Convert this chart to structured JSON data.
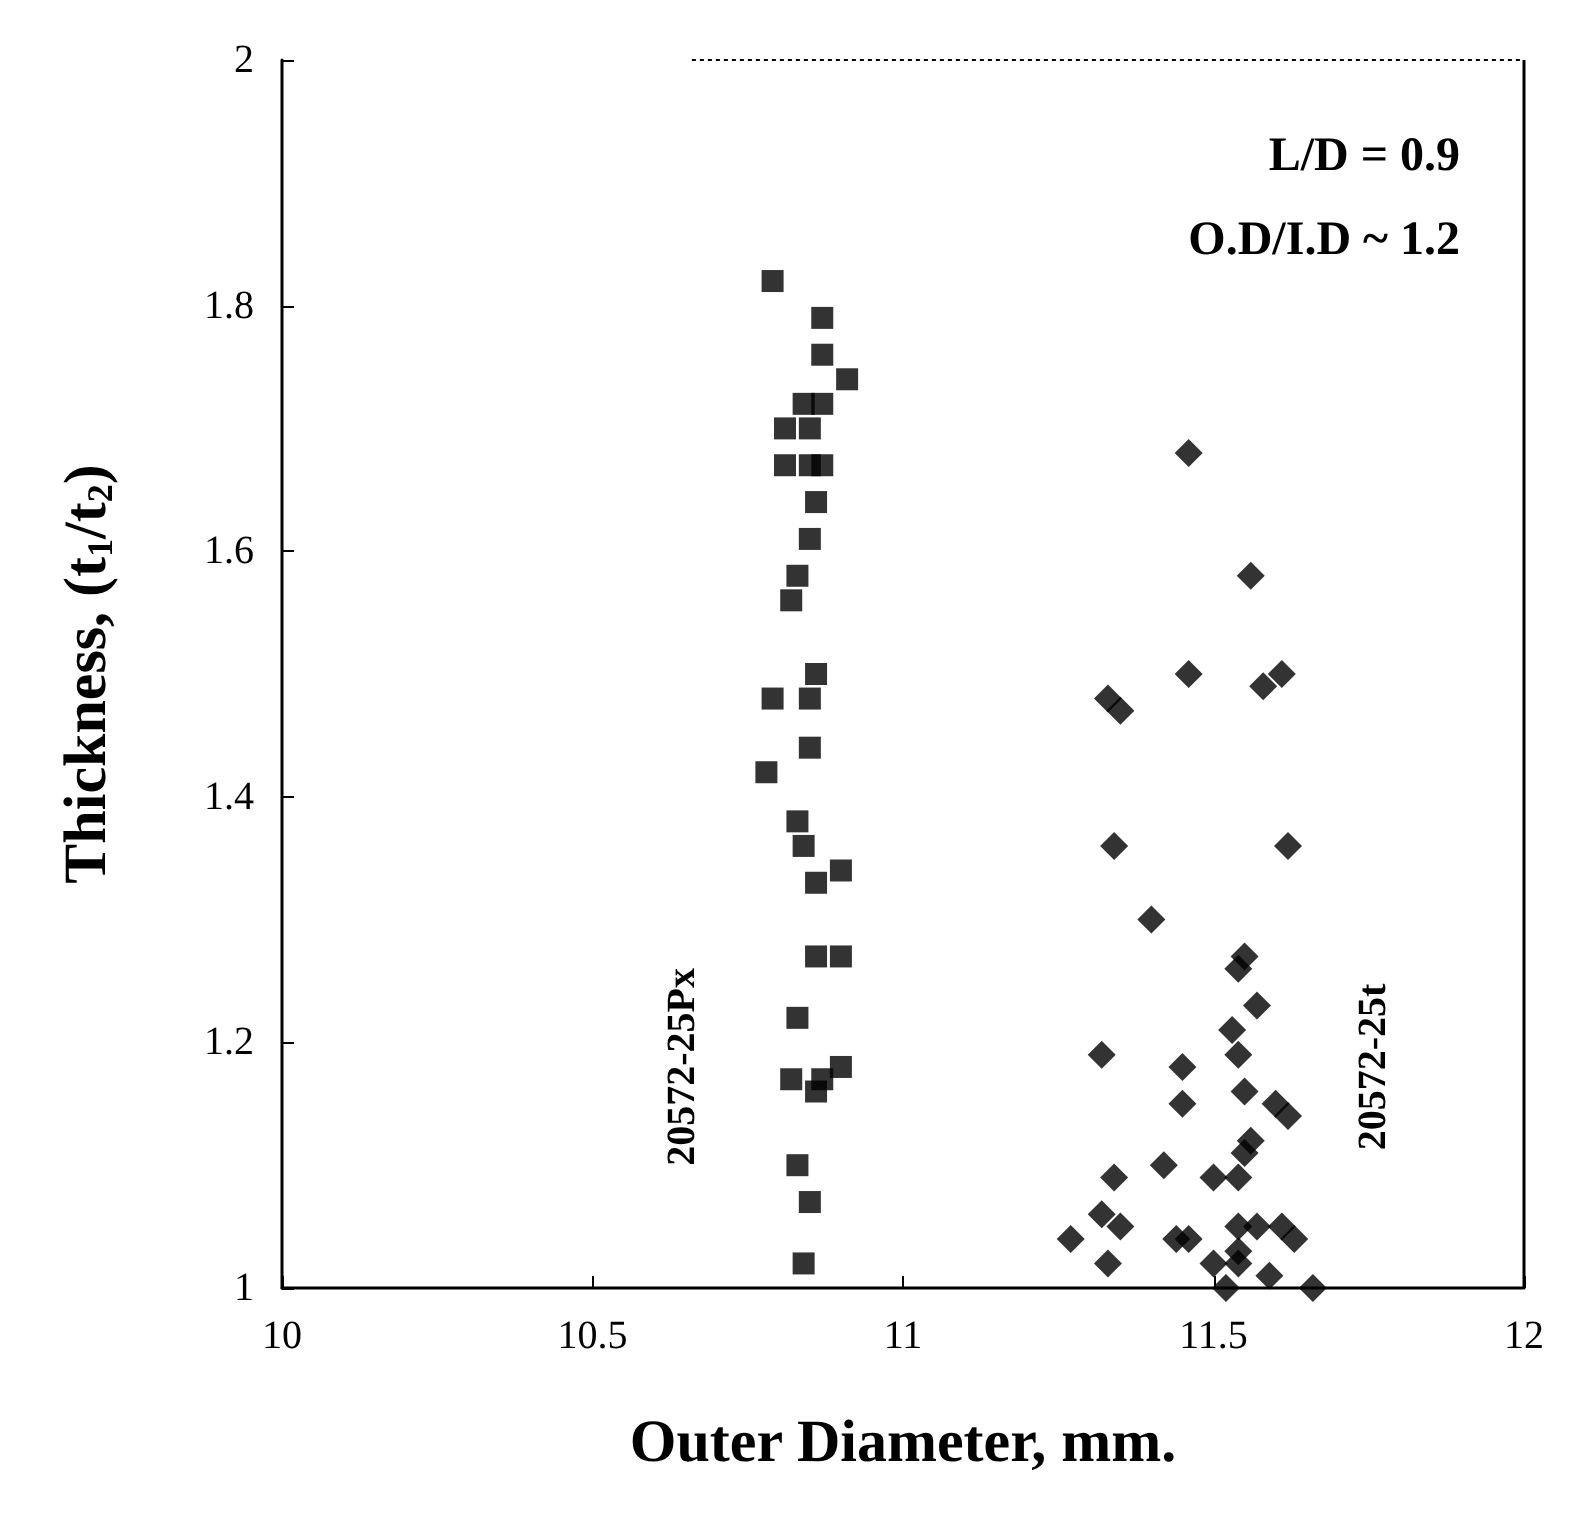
{
  "chart_data": {
    "type": "scatter",
    "xlabel": "Outer Diameter, mm.",
    "ylabel": "Thickness, (t$_{1}$/t$_{2}$)",
    "xlim": [
      10,
      12
    ],
    "xticks": [
      10,
      10.5,
      11,
      11.5,
      12
    ],
    "ylim": [
      1,
      2
    ],
    "yticks": [
      1,
      1.2,
      1.4,
      1.6,
      1.8,
      2
    ],
    "grid": false,
    "legend": false,
    "annotations": [
      "L/D = 0.9",
      "O.D/I.D ~ 1.2"
    ],
    "series": [
      {
        "name": "20572-25Px",
        "color": "#000000",
        "marker": "square",
        "x": [
          10.79,
          10.87,
          10.87,
          10.91,
          10.84,
          10.87,
          10.81,
          10.85,
          10.81,
          10.85,
          10.87,
          10.86,
          10.85,
          10.83,
          10.82,
          10.86,
          10.79,
          10.85,
          10.85,
          10.78,
          10.83,
          10.84,
          10.9,
          10.86,
          10.86,
          10.9,
          10.83,
          10.82,
          10.87,
          10.9,
          10.86,
          10.83,
          10.85,
          10.84
        ],
        "values": [
          1.82,
          1.79,
          1.76,
          1.74,
          1.72,
          1.72,
          1.7,
          1.7,
          1.67,
          1.67,
          1.67,
          1.64,
          1.61,
          1.58,
          1.56,
          1.5,
          1.48,
          1.48,
          1.44,
          1.42,
          1.38,
          1.36,
          1.34,
          1.33,
          1.27,
          1.27,
          1.22,
          1.17,
          1.17,
          1.18,
          1.16,
          1.1,
          1.07,
          1.02
        ]
      },
      {
        "name": "20572-25t",
        "color": "#000000",
        "marker": "diamond",
        "x": [
          11.46,
          11.56,
          11.46,
          11.58,
          11.61,
          11.33,
          11.35,
          11.34,
          11.62,
          11.4,
          11.55,
          11.54,
          11.57,
          11.53,
          11.54,
          11.32,
          11.45,
          11.45,
          11.55,
          11.6,
          11.62,
          11.56,
          11.55,
          11.34,
          11.42,
          11.5,
          11.54,
          11.32,
          11.35,
          11.27,
          11.44,
          11.46,
          11.54,
          11.57,
          11.61,
          11.63,
          11.33,
          11.5,
          11.54,
          11.54,
          11.59,
          11.52,
          11.66
        ],
        "values": [
          1.68,
          1.58,
          1.5,
          1.49,
          1.5,
          1.48,
          1.47,
          1.36,
          1.36,
          1.3,
          1.27,
          1.26,
          1.23,
          1.21,
          1.19,
          1.19,
          1.18,
          1.15,
          1.16,
          1.15,
          1.14,
          1.12,
          1.11,
          1.09,
          1.1,
          1.09,
          1.09,
          1.06,
          1.05,
          1.04,
          1.04,
          1.04,
          1.05,
          1.05,
          1.05,
          1.04,
          1.02,
          1.02,
          1.03,
          1.02,
          1.01,
          1.0,
          1.0
        ]
      }
    ]
  }
}
